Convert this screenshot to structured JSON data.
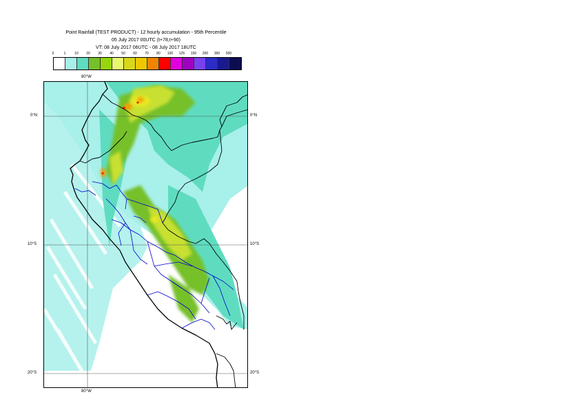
{
  "header": {
    "title_line1": "Point Rainfall (TEST PRODUCT) - 12 hourly accumulation - 95th Percentile",
    "title_line2": "05 July 2017 00UTC (t+78,t+90)",
    "title_line3": "VT: 08 July 2017 06UTC - 08 July 2017 18UTC"
  },
  "legend": {
    "thresholds": [
      "0",
      "1",
      "10",
      "20",
      "30",
      "40",
      "50",
      "60",
      "70",
      "80",
      "100",
      "125",
      "150",
      "200",
      "300",
      "500"
    ],
    "colors": [
      "#ffffff",
      "#a8f0ea",
      "#5fdcc0",
      "#76c02a",
      "#96d60a",
      "#e8f870",
      "#d8d818",
      "#f0c800",
      "#f08400",
      "#ff0000",
      "#e000e0",
      "#a000c0",
      "#7a40f0",
      "#2c2cc8",
      "#1a1a90",
      "#0c0c50"
    ]
  },
  "map": {
    "lat_labels": {
      "n0_left": "0°N",
      "n0_right": "0°N",
      "s10_left": "10°S",
      "s10_right": "10°S",
      "s20_left": "20°S",
      "s20_right": "20°S"
    },
    "lon_labels": {
      "top": "80°W",
      "bottom": "80°W"
    },
    "colors": {
      "ocean_light": "#a8f0ea",
      "mid": "#5fdcc0",
      "green": "#76c02a",
      "yellowgreen": "#c8e030",
      "yellow": "#e8e820",
      "orange": "#f0a000",
      "red": "#ff2000",
      "grid": "#555555",
      "coast": "#000000",
      "admin": "#0000cc"
    }
  }
}
